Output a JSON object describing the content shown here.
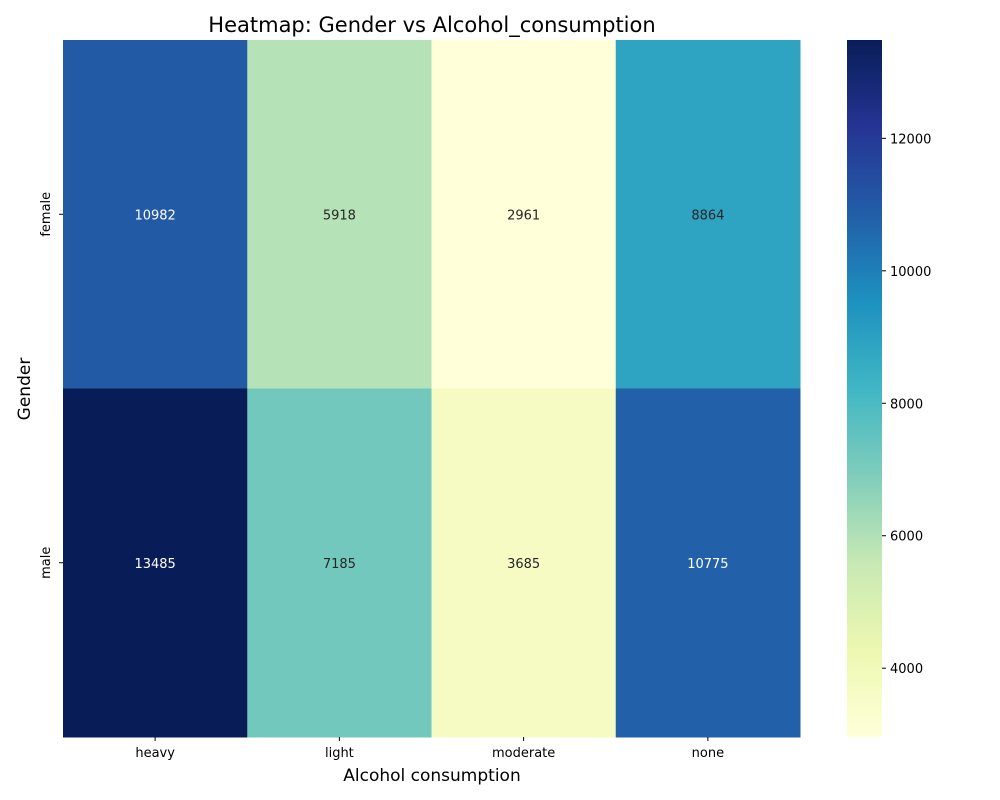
{
  "chart_data": {
    "type": "heatmap",
    "title": "Heatmap: Gender vs Alcohol_consumption",
    "xlabel": "Alcohol consumption",
    "ylabel": "Gender",
    "x_categories": [
      "heavy",
      "light",
      "moderate",
      "none"
    ],
    "y_categories": [
      "female",
      "male"
    ],
    "values": [
      [
        10982,
        5918,
        2961,
        8864
      ],
      [
        13485,
        7185,
        3685,
        10775
      ]
    ],
    "colormap": "YlGnBu",
    "color_range": [
      2961,
      13485
    ],
    "colorbar_ticks": [
      4000,
      6000,
      8000,
      10000,
      12000
    ],
    "colorbar_tick_labels": [
      "4000",
      "6000",
      "8000",
      "10000",
      "12000"
    ],
    "colormap_stops": [
      "#ffffd9",
      "#edf8b1",
      "#c7e9b4",
      "#7fcdbb",
      "#41b6c4",
      "#1d91c0",
      "#225ea8",
      "#253494",
      "#081d58"
    ]
  }
}
